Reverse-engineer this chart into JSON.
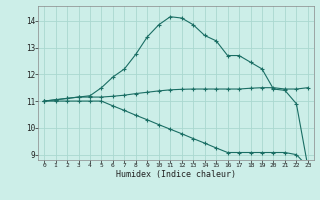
{
  "title": "",
  "xlabel": "Humidex (Indice chaleur)",
  "bg_color": "#cceee8",
  "grid_color": "#aad8d0",
  "line_color": "#1a6e64",
  "xlim": [
    -0.5,
    23.5
  ],
  "ylim": [
    8.8,
    14.55
  ],
  "yticks": [
    9,
    10,
    11,
    12,
    13,
    14
  ],
  "xticks": [
    0,
    1,
    2,
    3,
    4,
    5,
    6,
    7,
    8,
    9,
    10,
    11,
    12,
    13,
    14,
    15,
    16,
    17,
    18,
    19,
    20,
    21,
    22,
    23
  ],
  "curve1_x": [
    0,
    1,
    2,
    3,
    4,
    5,
    6,
    7,
    8,
    9,
    10,
    11,
    12,
    13,
    14,
    15,
    16,
    17,
    18,
    19,
    20,
    21,
    22,
    23
  ],
  "curve1_y": [
    11.0,
    11.05,
    11.1,
    11.15,
    11.15,
    11.15,
    11.18,
    11.22,
    11.28,
    11.33,
    11.38,
    11.42,
    11.44,
    11.45,
    11.45,
    11.45,
    11.45,
    11.45,
    11.48,
    11.5,
    11.5,
    11.45,
    11.45,
    11.5
  ],
  "curve2_x": [
    0,
    1,
    2,
    3,
    4,
    5,
    6,
    7,
    8,
    9,
    10,
    11,
    12,
    13,
    14,
    15,
    16,
    17,
    18,
    19,
    20,
    21,
    22,
    23
  ],
  "curve2_y": [
    11.0,
    11.05,
    11.1,
    11.15,
    11.2,
    11.5,
    11.9,
    12.2,
    12.75,
    13.4,
    13.85,
    14.15,
    14.1,
    13.85,
    13.45,
    13.25,
    12.7,
    12.7,
    12.45,
    12.2,
    11.45,
    11.4,
    10.9,
    8.55
  ],
  "curve3_x": [
    0,
    1,
    2,
    3,
    4,
    5,
    6,
    7,
    8,
    9,
    10,
    11,
    12,
    13,
    14,
    15,
    16,
    17,
    18,
    19,
    20,
    21,
    22,
    23
  ],
  "curve3_y": [
    11.0,
    11.0,
    11.0,
    11.0,
    11.0,
    11.0,
    10.82,
    10.65,
    10.47,
    10.3,
    10.12,
    9.95,
    9.78,
    9.6,
    9.43,
    9.25,
    9.08,
    9.08,
    9.08,
    9.08,
    9.08,
    9.08,
    9.0,
    8.55
  ]
}
